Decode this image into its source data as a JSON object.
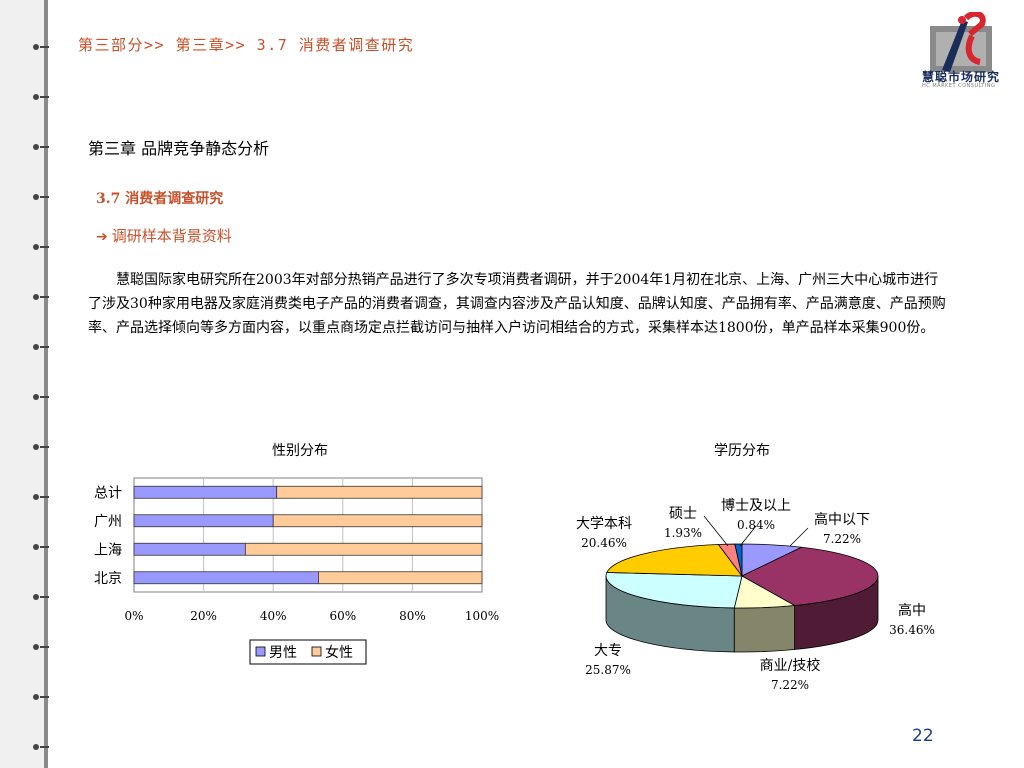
{
  "breadcrumb": "第三部分>> 第三章>> 3.7  消费者调查研究",
  "logo": {
    "name": "慧聪市场研究",
    "subtitle": "HC MARKET CONSULTING"
  },
  "chapter_title": "第三章  品牌竞争静态分析",
  "section_title": "3.7  消费者调查研究",
  "sub_heading": "调研样本背景资料",
  "paragraph": "慧聪国际家电研究所在2003年对部分热销产品进行了多次专项消费者调研，并于2004年1月初在北京、上海、广州三大中心城市进行了涉及30种家用电器及家庭消费类电子产品的消费者调查，其调查内容涉及产品认知度、品牌认知度、产品拥有率、产品满意度、产品预购率、产品选择倾向等多方面内容，以重点商场定点拦截访问与抽样入户访问相结合的方式，采集样本达1800份，单产品样本采集900份。",
  "page_number": "22",
  "colors": {
    "accent": "#c8502a",
    "male": "#9999ff",
    "female": "#ffcc99"
  },
  "chart_data": [
    {
      "type": "bar",
      "orientation": "horizontal",
      "stacked": "percent",
      "title": "性别分布",
      "categories": [
        "总计",
        "广州",
        "上海",
        "北京"
      ],
      "series": [
        {
          "name": "男性",
          "values": [
            41,
            40,
            32,
            53
          ]
        },
        {
          "name": "女性",
          "values": [
            59,
            60,
            68,
            47
          ]
        }
      ],
      "xlim": [
        0,
        100
      ],
      "x_ticks": [
        "0%",
        "20%",
        "40%",
        "60%",
        "80%",
        "100%"
      ],
      "legend": "bottom",
      "grid": true
    },
    {
      "type": "pie",
      "title": "学历分布",
      "style": "3d",
      "slices": [
        {
          "label": "高中以下",
          "value": 7.22,
          "display": "7.22%",
          "color": "#9999ff"
        },
        {
          "label": "高中",
          "value": 36.46,
          "display": "36.46%",
          "color": "#993366"
        },
        {
          "label": "商业/技校",
          "value": 7.22,
          "display": "7.22%",
          "color": "#ffffcc"
        },
        {
          "label": "大专",
          "value": 25.87,
          "display": "25.87%",
          "color": "#ccffff"
        },
        {
          "label": "大学本科",
          "value": 20.46,
          "display": "20.46%",
          "color": "#ffcc00"
        },
        {
          "label": "硕士",
          "value": 1.93,
          "display": "1.93%",
          "color": "#ff8080"
        },
        {
          "label": "博士及以上",
          "value": 0.84,
          "display": "0.84%",
          "color": "#0066cc"
        }
      ]
    }
  ]
}
